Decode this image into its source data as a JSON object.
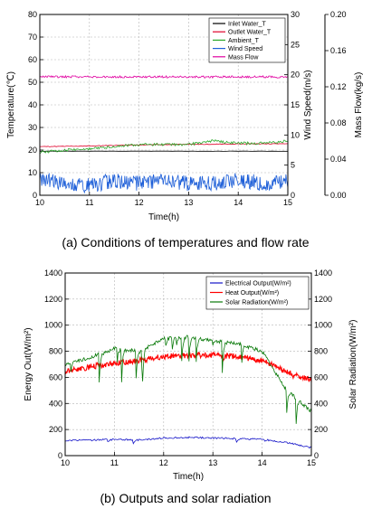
{
  "colors": {
    "inlet_water": "#000000",
    "outlet_water": "#e0002a",
    "ambient": "#2aa82a",
    "wind_speed": "#1e5fd8",
    "mass_flow": "#e000a0",
    "electrical": "#1414c8",
    "heat": "#ff0000",
    "solar": "#0a7a0a",
    "grid": "#b5b5b5"
  },
  "captions": {
    "a": "(a) Conditions of temperatures and flow rate",
    "b": "(b) Outputs and solar radiation"
  },
  "chart_data": [
    {
      "type": "line",
      "xlabel": "Time(h)",
      "ylabel": "Temperature(℃)",
      "y2label": "Wind Speed(m/s)",
      "y3label": "Mass Flow(kg/s)",
      "xlim": [
        10,
        15
      ],
      "ylim": [
        0,
        80
      ],
      "y2lim": [
        0,
        30
      ],
      "y3lim": [
        0,
        0.2
      ],
      "xticks": [
        "10",
        "11",
        "12",
        "13",
        "14",
        "15"
      ],
      "yticks": [
        "0",
        "10",
        "20",
        "30",
        "40",
        "50",
        "60",
        "70",
        "80"
      ],
      "y2ticks": [
        "0",
        "5",
        "10",
        "15",
        "20",
        "25",
        "30"
      ],
      "y3ticks": [
        "0.00",
        "0.04",
        "0.08",
        "0.12",
        "0.16",
        "0.20"
      ],
      "grid": true,
      "legend_position": "top-right",
      "series": [
        {
          "name": "Inlet Water_T",
          "axis": "y",
          "x": [
            10,
            11,
            12,
            13,
            14,
            15
          ],
          "values": [
            19.5,
            19.5,
            19.5,
            19.5,
            19.5,
            19.5
          ]
        },
        {
          "name": "Outlet Water_T",
          "axis": "y",
          "x": [
            10,
            11,
            12,
            13,
            14,
            15
          ],
          "values": [
            21.5,
            21.8,
            22.3,
            22.5,
            22.7,
            22.8
          ]
        },
        {
          "name": "Ambient_T",
          "axis": "y",
          "x": [
            10,
            10.5,
            11,
            11.5,
            12,
            12.5,
            13,
            13.5,
            14,
            14.5,
            15
          ],
          "values": [
            19,
            20,
            20.5,
            21.5,
            22.5,
            22.5,
            22.5,
            24,
            23,
            23,
            24
          ]
        },
        {
          "name": "Wind Speed",
          "axis": "y2",
          "x": [
            10,
            10.5,
            11,
            11.5,
            12,
            12.5,
            13,
            13.5,
            14,
            14.5,
            15
          ],
          "values": [
            2.5,
            2,
            1.5,
            2.5,
            2,
            2.5,
            2,
            2,
            2.5,
            2,
            2.5
          ]
        },
        {
          "name": "Mass Flow",
          "axis": "y3",
          "x": [
            10,
            11,
            12,
            13,
            14,
            15
          ],
          "values": [
            0.131,
            0.131,
            0.131,
            0.131,
            0.131,
            0.131
          ]
        }
      ]
    },
    {
      "type": "line",
      "xlabel": "Time(h)",
      "ylabel": "Energy Out(W/m²)",
      "y2label": "Solar Radiation(W/m²)",
      "xlim": [
        10,
        15
      ],
      "ylim": [
        0,
        1400
      ],
      "y2lim": [
        0,
        1400
      ],
      "xticks": [
        "10",
        "11",
        "12",
        "13",
        "14",
        "15"
      ],
      "yticks": [
        "0",
        "200",
        "400",
        "600",
        "800",
        "1000",
        "1200",
        "1400"
      ],
      "y2ticks": [
        "0",
        "200",
        "400",
        "600",
        "800",
        "1000",
        "1200",
        "1400"
      ],
      "grid": true,
      "legend_position": "top-right",
      "series": [
        {
          "name": "Electrical Output(W/m²)",
          "axis": "y",
          "x": [
            10,
            10.5,
            11,
            11.5,
            12,
            12.5,
            13,
            13.5,
            14,
            14.5,
            15
          ],
          "values": [
            115,
            120,
            125,
            120,
            135,
            140,
            135,
            130,
            125,
            100,
            60
          ]
        },
        {
          "name": "Heat Output(W/m²)",
          "axis": "y",
          "x": [
            10,
            10.5,
            11,
            11.5,
            12,
            12.5,
            13,
            13.5,
            14,
            14.5,
            15
          ],
          "values": [
            640,
            680,
            710,
            730,
            760,
            770,
            770,
            760,
            730,
            640,
            580
          ]
        },
        {
          "name": "Solar Radiation(W/m²)",
          "axis": "y2",
          "x": [
            10,
            10.5,
            11,
            11.5,
            12,
            12.5,
            13,
            13.5,
            14,
            14.3,
            14.5,
            15
          ],
          "values": [
            700,
            750,
            820,
            800,
            900,
            910,
            880,
            860,
            800,
            620,
            500,
            340
          ]
        }
      ]
    }
  ]
}
